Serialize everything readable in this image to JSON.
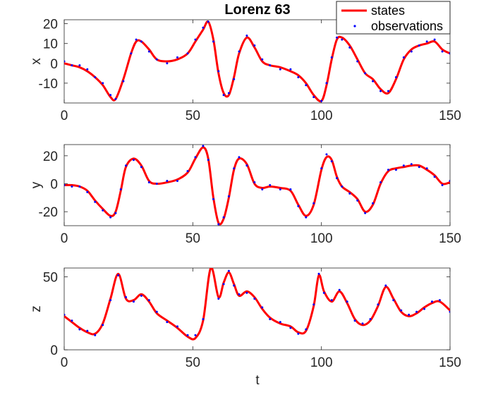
{
  "title": "Lorenz 63",
  "legend": {
    "placement": "top-right",
    "entries": [
      {
        "label": "states",
        "color": "#ff0000",
        "style": "line"
      },
      {
        "label": "observations",
        "color": "#0000ff",
        "style": "dot"
      }
    ]
  },
  "xlabel": "t",
  "chart_data": [
    {
      "type": "line",
      "ylabel": "x",
      "xlim": [
        0,
        150
      ],
      "ylim": [
        -20,
        22
      ],
      "xticks": [
        0,
        50,
        100,
        150
      ],
      "yticks": [
        -10,
        0,
        10,
        20
      ],
      "grid": false,
      "series": [
        {
          "name": "states",
          "color": "#ff0000",
          "x": [
            0,
            3,
            6,
            9,
            12,
            15,
            18,
            20,
            23,
            26,
            28,
            30,
            33,
            36,
            40,
            44,
            48,
            51,
            54,
            56,
            58,
            60,
            62,
            64,
            66,
            68,
            71,
            74,
            77,
            80,
            84,
            88,
            91,
            94,
            97,
            100,
            102,
            104,
            106,
            108,
            111,
            114,
            117,
            120,
            123,
            126,
            129,
            132,
            135,
            138,
            141,
            144,
            147,
            150
          ],
          "y": [
            0,
            -1,
            -2,
            -4,
            -7,
            -11,
            -17,
            -18,
            -8,
            5,
            11,
            11,
            7,
            2,
            1,
            2,
            5,
            11,
            17,
            21,
            12,
            -5,
            -15,
            -16,
            -7,
            5,
            13,
            8,
            1,
            -1,
            -2,
            -4,
            -6,
            -10,
            -16,
            -19,
            -11,
            2,
            12,
            13,
            9,
            2,
            -5,
            -8,
            -13,
            -15,
            -8,
            2,
            7,
            9,
            10,
            11,
            7,
            5
          ]
        },
        {
          "name": "observations",
          "color": "#0000ff",
          "x": [
            0,
            3,
            6,
            9,
            12,
            15,
            18,
            20,
            23,
            26,
            28,
            30,
            33,
            36,
            40,
            44,
            48,
            51,
            54,
            56,
            58,
            60,
            62,
            64,
            66,
            68,
            71,
            74,
            77,
            80,
            84,
            88,
            91,
            94,
            97,
            100,
            102,
            104,
            106,
            108,
            111,
            114,
            117,
            120,
            123,
            126,
            129,
            132,
            135,
            138,
            141,
            144,
            147,
            150
          ],
          "y": [
            1,
            -1,
            -1,
            -3,
            -7,
            -10,
            -16,
            -18,
            -9,
            5,
            12,
            11,
            6,
            2,
            0,
            3,
            5,
            12,
            18,
            21,
            11,
            -4,
            -16,
            -15,
            -8,
            6,
            14,
            9,
            2,
            -1,
            -3,
            -3,
            -7,
            -11,
            -17,
            -19,
            -10,
            3,
            13,
            12,
            8,
            1,
            -5,
            -9,
            -14,
            -14,
            -7,
            3,
            6,
            9,
            11,
            12,
            6,
            5
          ]
        }
      ]
    },
    {
      "type": "line",
      "ylabel": "y",
      "xlim": [
        0,
        150
      ],
      "ylim": [
        -30,
        28
      ],
      "xticks": [
        0,
        50,
        100,
        150
      ],
      "yticks": [
        -20,
        0,
        20
      ],
      "grid": false,
      "series": [
        {
          "name": "states",
          "color": "#ff0000",
          "x": [
            0,
            3,
            6,
            9,
            12,
            15,
            18,
            20,
            22,
            24,
            27,
            30,
            33,
            36,
            40,
            44,
            48,
            51,
            54,
            56,
            58,
            60,
            62,
            64,
            66,
            68,
            71,
            74,
            77,
            80,
            84,
            88,
            91,
            94,
            97,
            100,
            102,
            104,
            106,
            108,
            111,
            114,
            117,
            120,
            123,
            126,
            129,
            132,
            135,
            138,
            141,
            144,
            147,
            150
          ],
          "y": [
            -1,
            -1,
            -2,
            -5,
            -12,
            -18,
            -23,
            -20,
            -5,
            12,
            18,
            13,
            2,
            0,
            1,
            3,
            8,
            18,
            26,
            18,
            -10,
            -28,
            -25,
            -10,
            10,
            18,
            14,
            0,
            -3,
            -2,
            -3,
            -5,
            -15,
            -23,
            -15,
            10,
            19,
            17,
            5,
            -2,
            -6,
            -11,
            -20,
            -15,
            0,
            9,
            11,
            12,
            13,
            13,
            10,
            6,
            0,
            1
          ]
        },
        {
          "name": "observations",
          "color": "#0000ff",
          "x": [
            0,
            3,
            6,
            9,
            12,
            15,
            18,
            20,
            22,
            24,
            27,
            30,
            33,
            36,
            40,
            44,
            48,
            51,
            54,
            56,
            58,
            60,
            62,
            64,
            66,
            68,
            71,
            74,
            77,
            80,
            84,
            88,
            91,
            94,
            97,
            100,
            102,
            104,
            106,
            108,
            111,
            114,
            117,
            120,
            123,
            126,
            129,
            132,
            135,
            138,
            141,
            144,
            147,
            150
          ],
          "y": [
            -1,
            -2,
            -2,
            -6,
            -13,
            -19,
            -24,
            -21,
            -4,
            13,
            17,
            12,
            1,
            0,
            2,
            2,
            9,
            19,
            27,
            17,
            -11,
            -29,
            -24,
            -9,
            11,
            19,
            13,
            1,
            -4,
            -1,
            -4,
            -4,
            -16,
            -24,
            -14,
            11,
            21,
            16,
            4,
            -2,
            -7,
            -12,
            -21,
            -14,
            1,
            10,
            10,
            13,
            14,
            12,
            11,
            5,
            -1,
            2
          ]
        }
      ]
    },
    {
      "type": "line",
      "ylabel": "z",
      "xlim": [
        0,
        150
      ],
      "ylim": [
        0,
        56
      ],
      "xticks": [
        0,
        50,
        100,
        150
      ],
      "yticks": [
        0,
        50
      ],
      "grid": false,
      "series": [
        {
          "name": "states",
          "color": "#ff0000",
          "x": [
            0,
            3,
            6,
            9,
            12,
            15,
            18,
            21,
            24,
            27,
            30,
            33,
            36,
            40,
            44,
            48,
            51,
            54,
            57,
            60,
            62,
            64,
            66,
            68,
            71,
            74,
            77,
            80,
            84,
            88,
            91,
            94,
            97,
            99,
            101,
            104,
            107,
            110,
            113,
            116,
            119,
            122,
            125,
            128,
            131,
            134,
            137,
            140,
            143,
            146,
            150
          ],
          "y": [
            23,
            19,
            15,
            12,
            11,
            18,
            35,
            52,
            35,
            34,
            38,
            33,
            25,
            20,
            15,
            9,
            8,
            20,
            56,
            36,
            46,
            53,
            45,
            37,
            40,
            36,
            28,
            22,
            18,
            16,
            12,
            13,
            30,
            51,
            40,
            33,
            40,
            32,
            21,
            17,
            20,
            30,
            43,
            35,
            26,
            23,
            25,
            29,
            32,
            33,
            27
          ]
        },
        {
          "name": "observations",
          "color": "#0000ff",
          "x": [
            0,
            3,
            6,
            9,
            12,
            15,
            18,
            21,
            24,
            27,
            30,
            33,
            36,
            40,
            44,
            48,
            51,
            54,
            57,
            60,
            62,
            64,
            66,
            68,
            71,
            74,
            77,
            80,
            84,
            88,
            91,
            94,
            97,
            99,
            101,
            104,
            107,
            110,
            113,
            116,
            119,
            122,
            125,
            128,
            131,
            134,
            137,
            140,
            143,
            146,
            150
          ],
          "y": [
            24,
            20,
            14,
            13,
            10,
            17,
            34,
            51,
            36,
            33,
            37,
            34,
            26,
            19,
            16,
            10,
            10,
            21,
            57,
            35,
            45,
            54,
            44,
            38,
            39,
            35,
            29,
            21,
            19,
            15,
            11,
            14,
            31,
            52,
            39,
            34,
            41,
            33,
            20,
            18,
            21,
            31,
            44,
            34,
            27,
            24,
            26,
            28,
            33,
            34,
            26
          ]
        }
      ]
    }
  ]
}
